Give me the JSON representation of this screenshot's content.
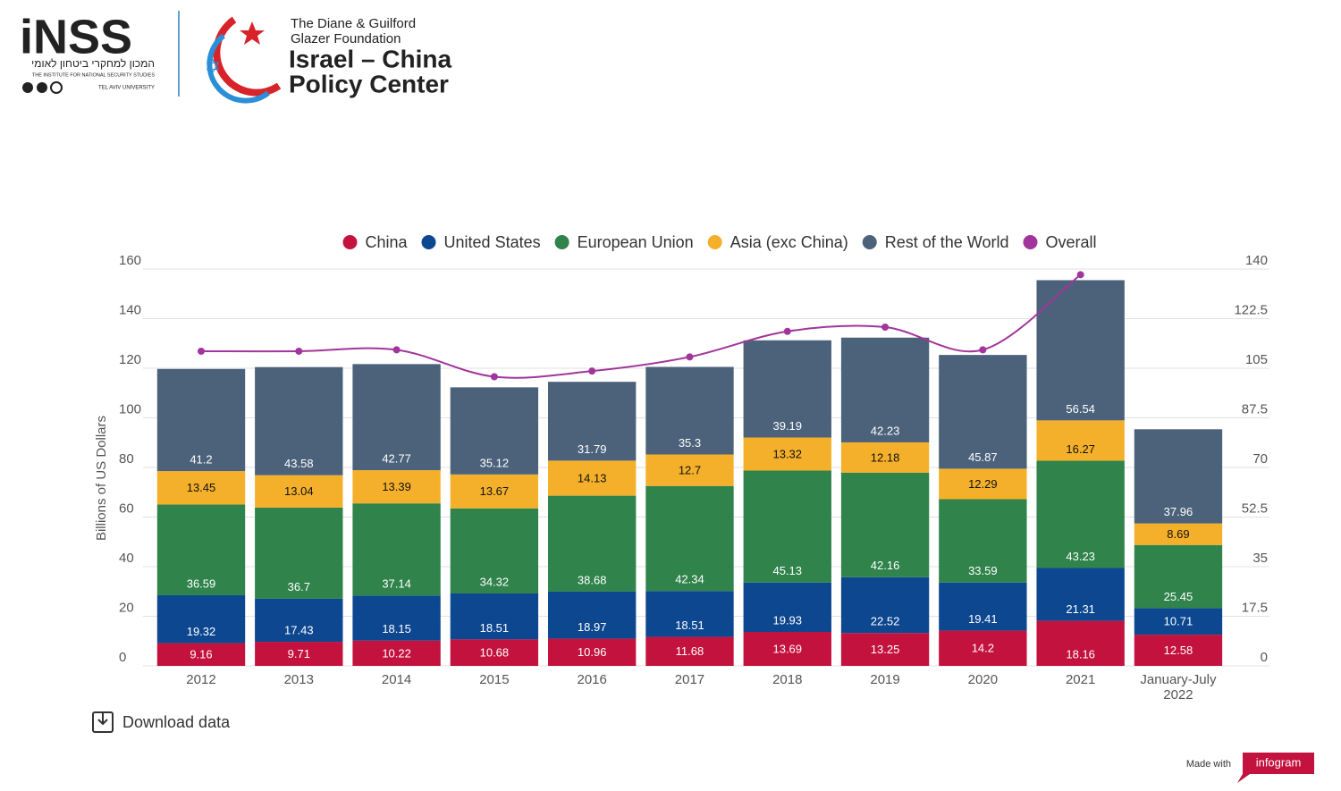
{
  "header": {
    "inss": "iNSS",
    "inss_hebrew": "המכון למחקרי ביטחון לאומי",
    "inss_english": "THE INSTITUTE FOR NATIONAL SECURITY STUDIES",
    "university": "TEL AVIV UNIVERSITY",
    "foundation_line1": "The Diane & Guilford",
    "foundation_line2": "Glazer Foundation",
    "center_line1": "Israel – China",
    "center_line2": "Policy Center"
  },
  "footer": {
    "download": "Download data",
    "made_with": "Made with",
    "brand": "infogram"
  },
  "chart_data": {
    "type": "bar",
    "stacked": true,
    "categories": [
      "2012",
      "2013",
      "2014",
      "2015",
      "2016",
      "2017",
      "2018",
      "2019",
      "2020",
      "2021",
      "January-July 2022"
    ],
    "y_label": "Billions of US Dollars",
    "ylim": [
      0,
      160
    ],
    "yticks": [
      0,
      20,
      40,
      60,
      80,
      100,
      120,
      140,
      160
    ],
    "y2lim": [
      0,
      140
    ],
    "y2ticks": [
      0,
      17.5,
      35,
      52.5,
      70,
      87.5,
      105,
      122.5,
      140
    ],
    "grid": true,
    "legend": "top",
    "series": [
      {
        "name": "China",
        "color": "#c3123d",
        "label_color": "#ffffff",
        "values": [
          9.16,
          9.71,
          10.22,
          10.68,
          10.96,
          11.68,
          13.69,
          13.25,
          14.2,
          18.16,
          12.58
        ]
      },
      {
        "name": "United States",
        "color": "#0d4790",
        "label_color": "#ffffff",
        "values": [
          19.32,
          17.43,
          18.15,
          18.51,
          18.97,
          18.51,
          19.93,
          22.52,
          19.41,
          21.31,
          10.71
        ]
      },
      {
        "name": "European Union",
        "color": "#2f834b",
        "label_color": "#ffffff",
        "values": [
          36.59,
          36.7,
          37.14,
          34.32,
          38.68,
          42.34,
          45.13,
          42.16,
          33.59,
          43.23,
          25.45
        ]
      },
      {
        "name": "Asia (exc China)",
        "color": "#f5b02b",
        "label_color": "#111111",
        "values": [
          13.45,
          13.04,
          13.39,
          13.67,
          14.13,
          12.7,
          13.32,
          12.18,
          12.29,
          16.27,
          8.69
        ]
      },
      {
        "name": "Rest of the World",
        "color": "#4c627b",
        "label_color": "#ffffff",
        "values": [
          41.2,
          43.58,
          42.77,
          35.12,
          31.79,
          35.3,
          39.19,
          42.23,
          45.87,
          56.54,
          37.96
        ]
      },
      {
        "name": "Overall",
        "type": "line",
        "axis": "y2",
        "color": "#a1359b",
        "values": [
          111,
          111,
          111.5,
          102,
          104,
          109,
          118,
          119.5,
          111.5,
          138,
          null
        ]
      }
    ]
  }
}
